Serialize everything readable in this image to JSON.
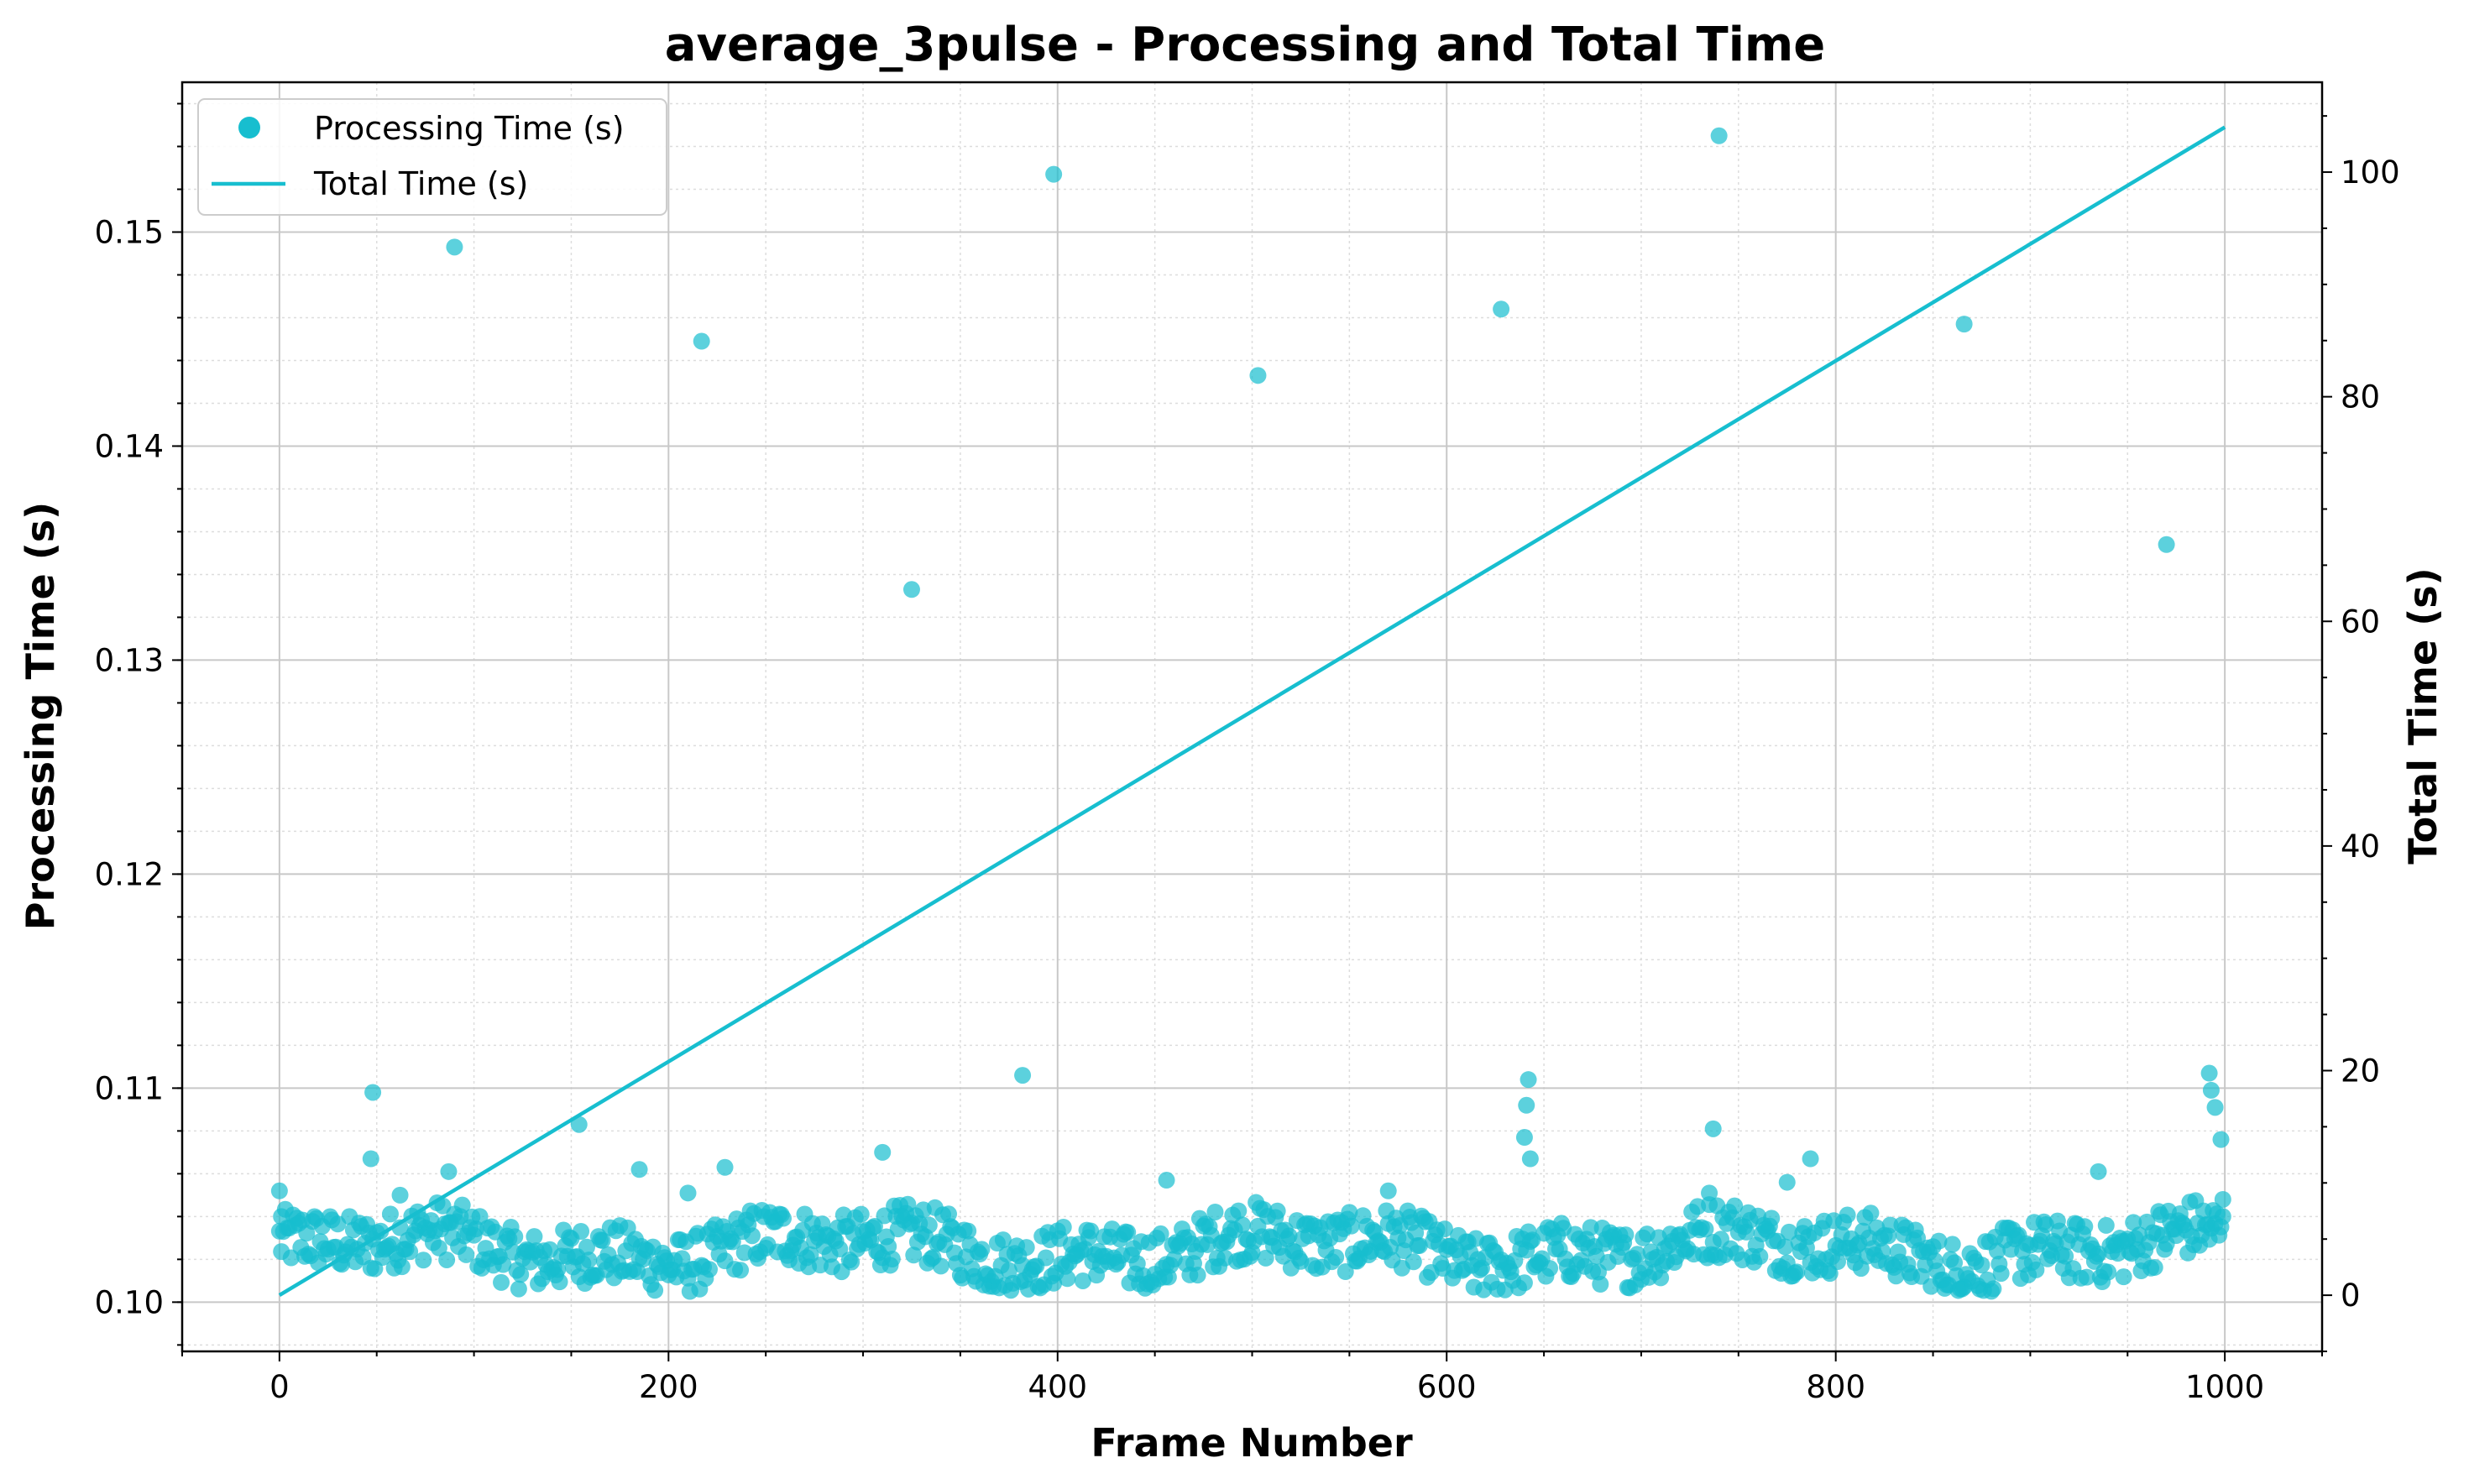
{
  "chart_data": {
    "type": "scatter",
    "title": "average_3pulse - Processing and Total Time",
    "xlabel": "Frame Number",
    "ylabel": "Processing Time (s)",
    "y2label": "Total Time (s)",
    "xlim": [
      -50,
      1050
    ],
    "ylim": [
      0.0977,
      0.157
    ],
    "y2lim": [
      -5,
      108
    ],
    "xticks": [
      0,
      200,
      400,
      600,
      800,
      1000
    ],
    "yticks": [
      0.1,
      0.11,
      0.12,
      0.13,
      0.14,
      0.15
    ],
    "ytick_labels": [
      "0.10",
      "0.11",
      "0.12",
      "0.13",
      "0.14",
      "0.15"
    ],
    "y2ticks": [
      0,
      20,
      40,
      60,
      80,
      100
    ],
    "grid": true,
    "legend_position": "top-left",
    "color": "#17becf",
    "series": [
      {
        "name": "Processing Time (s)",
        "kind": "scatter",
        "baseline": 0.1025,
        "note_points": "a band of ~1000 points between 0.1005 and 0.1050, plus outliers listed here",
        "outliers": [
          [
            0,
            0.1052
          ],
          [
            1,
            0.104
          ],
          [
            48,
            0.1098
          ],
          [
            47,
            0.1067
          ],
          [
            62,
            0.105
          ],
          [
            87,
            0.1061
          ],
          [
            90,
            0.1493
          ],
          [
            154,
            0.1083
          ],
          [
            185,
            0.1062
          ],
          [
            210,
            0.1051
          ],
          [
            217,
            0.1449
          ],
          [
            229,
            0.1063
          ],
          [
            310,
            0.107
          ],
          [
            325,
            0.1333
          ],
          [
            382,
            0.1106
          ],
          [
            398,
            0.1527
          ],
          [
            456,
            0.1057
          ],
          [
            503,
            0.1433
          ],
          [
            570,
            0.1052
          ],
          [
            628,
            0.1464
          ],
          [
            640,
            0.1077
          ],
          [
            641,
            0.1092
          ],
          [
            642,
            0.1104
          ],
          [
            643,
            0.1067
          ],
          [
            735,
            0.1051
          ],
          [
            737,
            0.1081
          ],
          [
            740,
            0.1545
          ],
          [
            775,
            0.1056
          ],
          [
            787,
            0.1067
          ],
          [
            866,
            0.1457
          ],
          [
            935,
            0.1061
          ],
          [
            970,
            0.1354
          ],
          [
            992,
            0.1107
          ],
          [
            993,
            0.1099
          ],
          [
            995,
            0.1091
          ],
          [
            998,
            0.1076
          ],
          [
            999,
            0.1048
          ]
        ]
      },
      {
        "name": "Total Time (s)",
        "kind": "line",
        "x": [
          0,
          1000
        ],
        "y": [
          0,
          104
        ]
      }
    ]
  }
}
